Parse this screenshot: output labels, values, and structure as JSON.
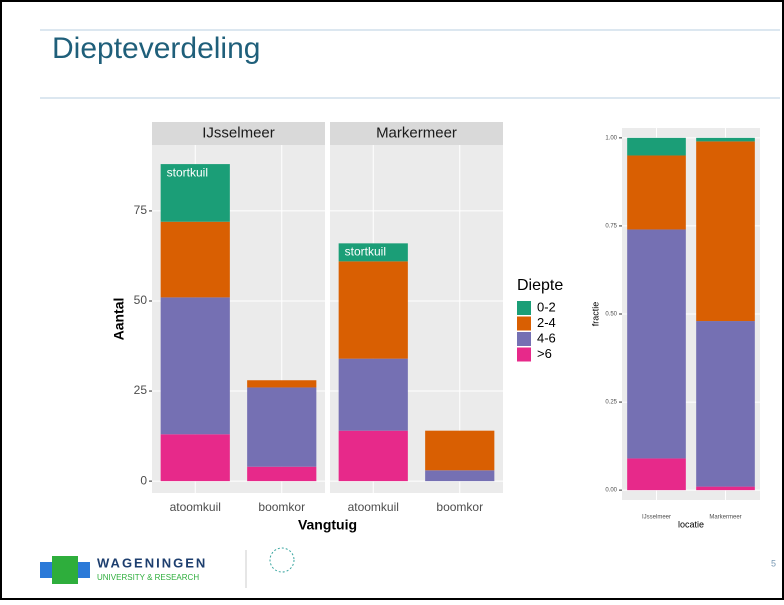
{
  "slide": {
    "title": "Diepteverdeling",
    "logo": {
      "name": "WAGENINGEN",
      "subtitle": "UNIVERSITY & RESEARCH"
    },
    "page": "5"
  },
  "chart_data": [
    {
      "type": "stacked-bar",
      "facets": [
        "IJsselmeer",
        "Markermeer"
      ],
      "categories": [
        "atoomkuil",
        "boomkor"
      ],
      "xlabel": "Vangtuig",
      "ylabel": "Aantal",
      "legend_title": "Diepte",
      "series": [
        {
          "name": "0-2",
          "color": "#1b9e77",
          "values": [
            [
              16,
              0
            ],
            [
              5,
              0
            ]
          ]
        },
        {
          "name": "2-4",
          "color": "#d95f02",
          "values": [
            [
              21,
              2
            ],
            [
              27,
              11
            ]
          ]
        },
        {
          "name": "4-6",
          "color": "#7570b3",
          "values": [
            [
              38,
              22
            ],
            [
              20,
              3
            ]
          ]
        },
        {
          "name": ">6",
          "color": "#e7298a",
          "values": [
            [
              13,
              4
            ],
            [
              14,
              0
            ]
          ]
        }
      ],
      "annotations": [
        "stortkuil",
        "stortkuil"
      ],
      "ylim": [
        -3.3,
        93.3
      ],
      "yticks": [
        0,
        25,
        50,
        75
      ],
      "grid": true
    },
    {
      "type": "stacked-bar",
      "categories": [
        "IJsselmeer",
        "Markermeer"
      ],
      "xlabel": "locatie",
      "ylabel": "fractie",
      "series": [
        {
          "name": "0-2",
          "color": "#1b9e77",
          "values": [
            0.05,
            0.01
          ]
        },
        {
          "name": "2-4",
          "color": "#d95f02",
          "values": [
            0.21,
            0.51
          ]
        },
        {
          "name": "4-6",
          "color": "#7570b3",
          "values": [
            0.65,
            0.47
          ]
        },
        {
          "name": ">6",
          "color": "#e7298a",
          "values": [
            0.09,
            0.01
          ]
        }
      ],
      "ylim": [
        -0.028,
        1.028
      ],
      "yticks": [
        {
          "value": 0,
          "label": "0.00"
        },
        {
          "value": 0.25,
          "label": "0.25"
        },
        {
          "value": 0.5,
          "label": "0.50"
        },
        {
          "value": 0.75,
          "label": "0.75"
        },
        {
          "value": 1,
          "label": "1.00"
        }
      ],
      "grid": true
    }
  ]
}
